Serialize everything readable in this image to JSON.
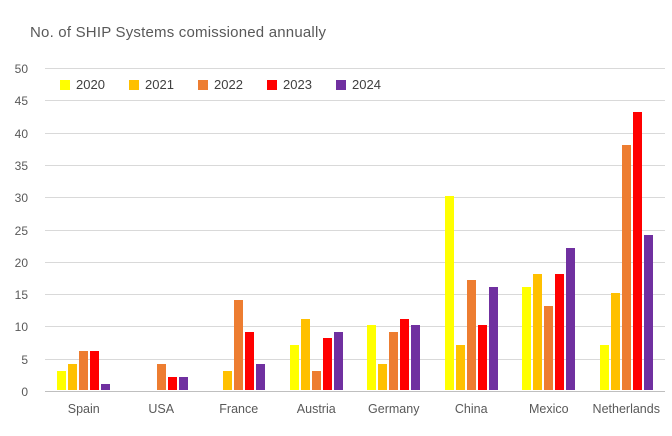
{
  "title": "No. of SHIP Systems comissioned annually",
  "chart_data": {
    "type": "bar",
    "title": "No. of SHIP Systems comissioned annually",
    "categories": [
      "Spain",
      "USA",
      "France",
      "Austria",
      "Germany",
      "China",
      "Mexico",
      "Netherlands"
    ],
    "series": [
      {
        "name": "2020",
        "color": "#FFFF00",
        "values": [
          3,
          0,
          0,
          7,
          10,
          30,
          16,
          7
        ]
      },
      {
        "name": "2021",
        "color": "#FFC000",
        "values": [
          4,
          0,
          3,
          11,
          4,
          7,
          18,
          15
        ]
      },
      {
        "name": "2022",
        "color": "#ED7D31",
        "values": [
          6,
          4,
          14,
          3,
          9,
          17,
          13,
          38
        ]
      },
      {
        "name": "2023",
        "color": "#FF0000",
        "values": [
          6,
          2,
          9,
          8,
          11,
          10,
          18,
          43
        ]
      },
      {
        "name": "2024",
        "color": "#7030A0",
        "values": [
          1,
          2,
          4,
          9,
          10,
          16,
          22,
          24
        ]
      }
    ],
    "xlabel": "",
    "ylabel": "",
    "ylim": [
      0,
      50
    ],
    "ytick_step": 5,
    "yticks": [
      0,
      5,
      10,
      15,
      20,
      25,
      30,
      35,
      40,
      45,
      50
    ],
    "grid": true,
    "legend_position": "top"
  },
  "colors": {
    "gridline": "#D9D9D9",
    "axis_line": "#BFBFBF",
    "text": "#595959",
    "legend_text": "#404040",
    "background": "#FFFFFF"
  }
}
